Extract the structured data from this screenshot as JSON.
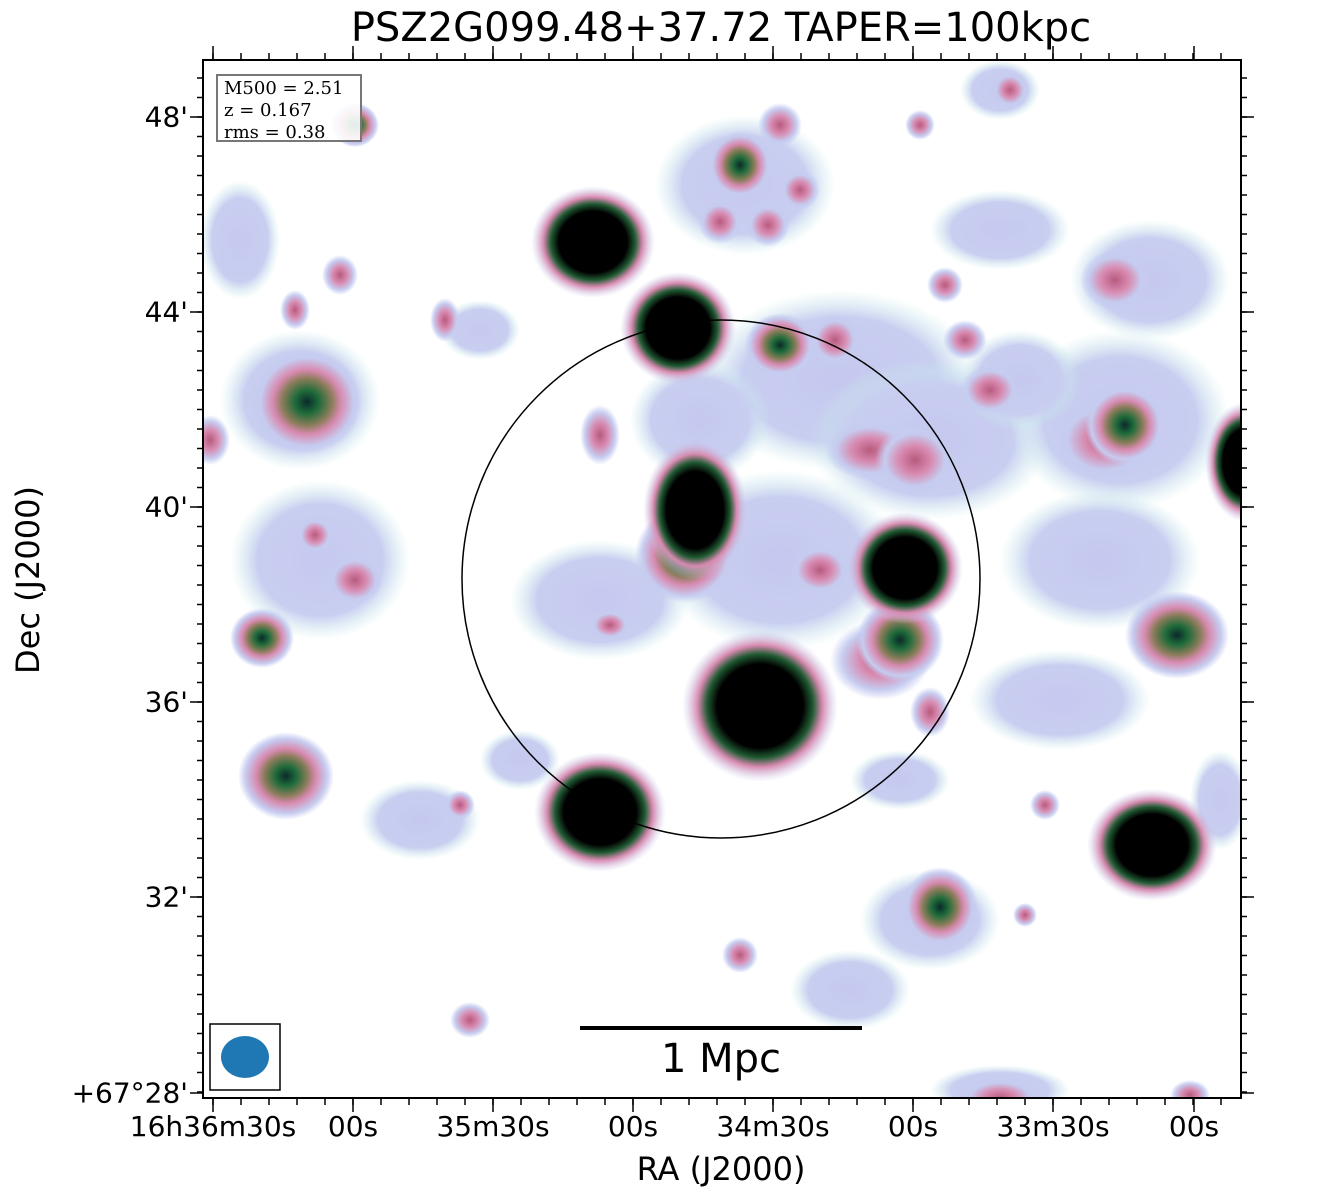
{
  "figure": {
    "title": "PSZ2G099.48+37.72 TAPER=100kpc",
    "xlabel": "RA (J2000)",
    "ylabel": "Dec (J2000)",
    "x_ticks": [
      "16h36m30s",
      "00s",
      "35m30s",
      "00s",
      "34m30s",
      "00s",
      "33m30s",
      "00s"
    ],
    "y_ticks": [
      "48'",
      "44'",
      "40'",
      "36'",
      "32'",
      "+67°28'"
    ],
    "info": {
      "m500": "M500 = 2.51",
      "z": "z = 0.167",
      "rms": "rms = 0.38"
    },
    "scale_bar_label": "1 Mpc",
    "colors": {
      "faint": "#c6ccf0",
      "faint_alt": "#c8ebeb",
      "mid": "#d88ab0",
      "green": "#1f6b3a",
      "core": "#000000",
      "beam": "#1f77b4"
    },
    "icons": [
      "radio-emission-map",
      "r500-circle",
      "beam-ellipse",
      "scale-bar"
    ]
  }
}
